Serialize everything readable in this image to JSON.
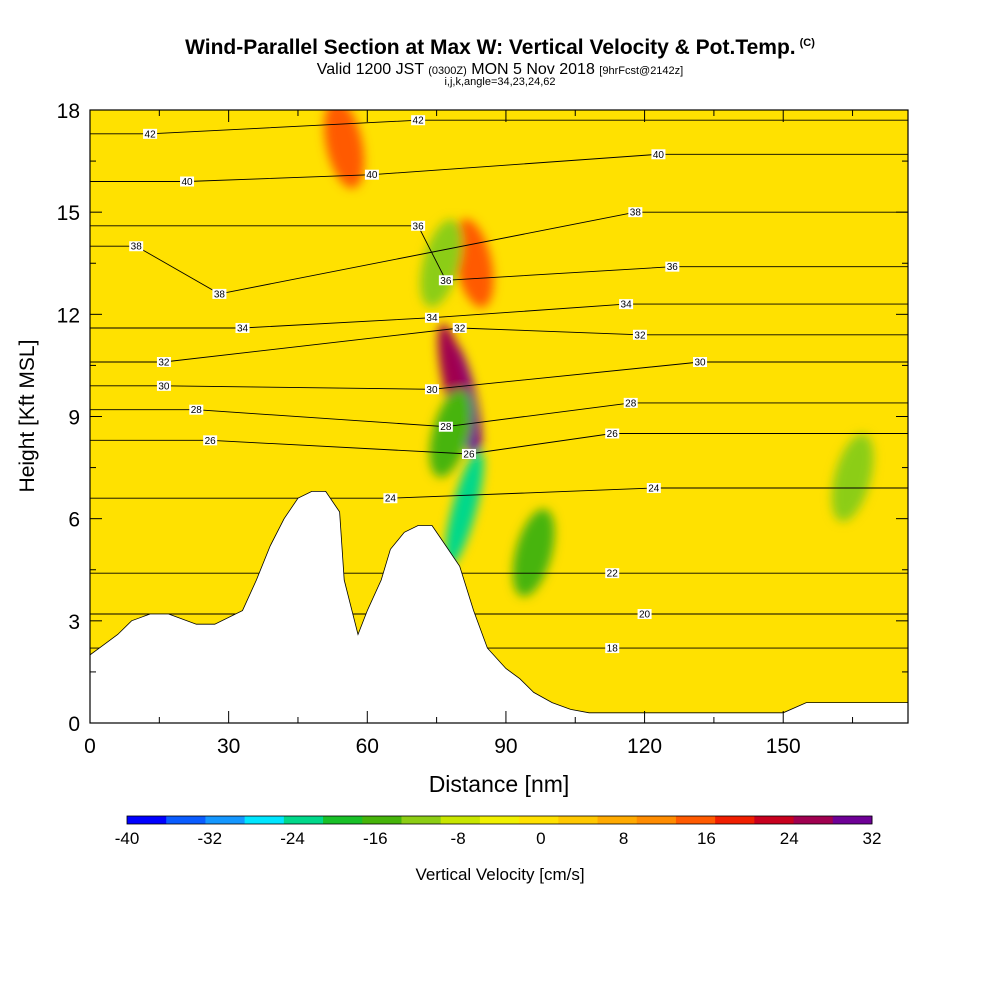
{
  "header": {
    "title": "Wind-Parallel Section at Max W: Vertical Velocity & Pot.Temp.",
    "title_tag": "(C)",
    "valid_prefix": "Valid 1200 JST",
    "valid_zulu": "(0300Z)",
    "valid_date": "MON 5 Nov 2018",
    "forecast": "[9hrFcst@2142z]",
    "grid_info": "i,j,k,angle=34,23,24,62"
  },
  "colorbar": {
    "label": "Vertical Velocity [cm/s]",
    "ticks": [
      "-40",
      "-32",
      "-24",
      "-16",
      "-8",
      "0",
      "8",
      "16",
      "24",
      "32"
    ],
    "colors": [
      "#0000ff",
      "#0a5cff",
      "#1497ff",
      "#00e6ff",
      "#00d88a",
      "#19c028",
      "#46b40a",
      "#8ccd14",
      "#c8e600",
      "#f0f000",
      "#ffe100",
      "#ffc800",
      "#ffaa00",
      "#ff8c00",
      "#ff5a00",
      "#f01e00",
      "#c8001e",
      "#a00050",
      "#6e0096"
    ]
  },
  "chart_data": {
    "type": "heatmap",
    "title": "Wind-Parallel Section at Max W: Vertical Velocity & Pot.Temp.",
    "xlabel": "Distance [nm]",
    "ylabel": "Height [Kft MSL]",
    "xlim": [
      0,
      177
    ],
    "ylim": [
      0,
      18
    ],
    "x_ticks": [
      "0",
      "30",
      "60",
      "90",
      "120",
      "150"
    ],
    "y_ticks": [
      "0",
      "3",
      "6",
      "9",
      "12",
      "15",
      "18"
    ],
    "x_tick_values": [
      0,
      30,
      60,
      90,
      120,
      150
    ],
    "y_tick_values": [
      0,
      3,
      6,
      9,
      12,
      15,
      18
    ],
    "color_variable": "Vertical Velocity [cm/s]",
    "color_range": [
      -40,
      32
    ],
    "contour_variable": "Potential temperature (C)",
    "contour_labels": [
      {
        "text": "42",
        "x": 13,
        "y": 17.3
      },
      {
        "text": "42",
        "x": 71,
        "y": 17.7
      },
      {
        "text": "40",
        "x": 21,
        "y": 15.9
      },
      {
        "text": "40",
        "x": 61,
        "y": 16.1
      },
      {
        "text": "40",
        "x": 123,
        "y": 16.7
      },
      {
        "text": "38",
        "x": 10,
        "y": 14.0
      },
      {
        "text": "38",
        "x": 118,
        "y": 15.0
      },
      {
        "text": "38",
        "x": 28,
        "y": 12.6
      },
      {
        "text": "36",
        "x": 71,
        "y": 14.6
      },
      {
        "text": "36",
        "x": 77,
        "y": 13.0
      },
      {
        "text": "36",
        "x": 126,
        "y": 13.4
      },
      {
        "text": "34",
        "x": 33,
        "y": 11.6
      },
      {
        "text": "34",
        "x": 74,
        "y": 11.9
      },
      {
        "text": "34",
        "x": 116,
        "y": 12.3
      },
      {
        "text": "32",
        "x": 16,
        "y": 10.6
      },
      {
        "text": "32",
        "x": 80,
        "y": 11.6
      },
      {
        "text": "32",
        "x": 119,
        "y": 11.4
      },
      {
        "text": "30",
        "x": 16,
        "y": 9.9
      },
      {
        "text": "30",
        "x": 74,
        "y": 9.8
      },
      {
        "text": "30",
        "x": 132,
        "y": 10.6
      },
      {
        "text": "28",
        "x": 23,
        "y": 9.2
      },
      {
        "text": "28",
        "x": 77,
        "y": 8.7
      },
      {
        "text": "28",
        "x": 117,
        "y": 9.4
      },
      {
        "text": "26",
        "x": 26,
        "y": 8.3
      },
      {
        "text": "26",
        "x": 82,
        "y": 7.9
      },
      {
        "text": "26",
        "x": 113,
        "y": 8.5
      },
      {
        "text": "24",
        "x": 65,
        "y": 6.6
      },
      {
        "text": "24",
        "x": 122,
        "y": 6.9
      },
      {
        "text": "22",
        "x": 113,
        "y": 4.4
      },
      {
        "text": "20",
        "x": 120,
        "y": 3.2
      },
      {
        "text": "18",
        "x": 113,
        "y": 2.2
      }
    ],
    "terrain_profile": [
      [
        0,
        2.0
      ],
      [
        3,
        2.3
      ],
      [
        6,
        2.6
      ],
      [
        9,
        3.0
      ],
      [
        13,
        3.2
      ],
      [
        17,
        3.2
      ],
      [
        23,
        2.9
      ],
      [
        27,
        2.9
      ],
      [
        33,
        3.3
      ],
      [
        36,
        4.2
      ],
      [
        39,
        5.2
      ],
      [
        42,
        6.0
      ],
      [
        45,
        6.6
      ],
      [
        48,
        6.8
      ],
      [
        51,
        6.8
      ],
      [
        54,
        6.2
      ],
      [
        55,
        4.2
      ],
      [
        58,
        2.6
      ],
      [
        60,
        3.3
      ],
      [
        63,
        4.2
      ],
      [
        65,
        5.1
      ],
      [
        68,
        5.6
      ],
      [
        71,
        5.8
      ],
      [
        74,
        5.8
      ],
      [
        77,
        5.2
      ],
      [
        80,
        4.6
      ],
      [
        83,
        3.3
      ],
      [
        86,
        2.2
      ],
      [
        90,
        1.6
      ],
      [
        93,
        1.3
      ],
      [
        96,
        0.9
      ],
      [
        100,
        0.6
      ],
      [
        104,
        0.4
      ],
      [
        108,
        0.3
      ],
      [
        150,
        0.3
      ],
      [
        155,
        0.6
      ],
      [
        177,
        0.6
      ]
    ],
    "w_features": [
      {
        "x": 81,
        "y": 9.5,
        "value": 32
      },
      {
        "x": 79,
        "y": 10.0,
        "value": 26
      },
      {
        "x": 83,
        "y": 13.5,
        "value": 16
      },
      {
        "x": 55,
        "y": 17.0,
        "value": 16
      },
      {
        "x": 81,
        "y": 6.3,
        "value": -24
      },
      {
        "x": 78,
        "y": 8.5,
        "value": -14
      },
      {
        "x": 76,
        "y": 13.5,
        "value": -12
      },
      {
        "x": 96,
        "y": 5.0,
        "value": -14
      },
      {
        "x": 165,
        "y": 7.2,
        "value": -12
      }
    ]
  }
}
